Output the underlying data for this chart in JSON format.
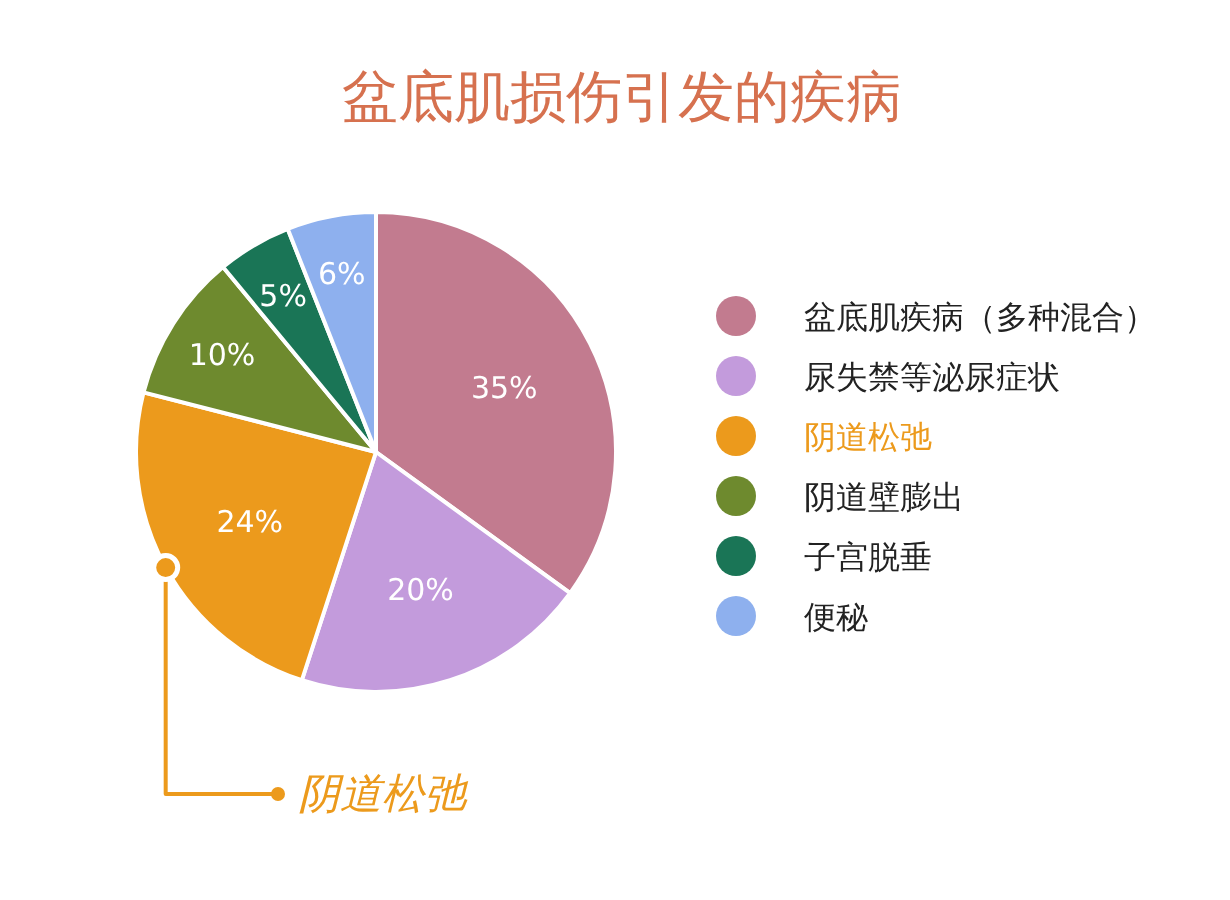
{
  "chart_data": {
    "type": "pie",
    "title": "盆底肌损伤引发的疾病",
    "categories": [
      "盆底肌疾病（多种混合）",
      "尿失禁等泌尿症状",
      "阴道松弛",
      "阴道壁膨出",
      "子宫脱垂",
      "便秘"
    ],
    "values": [
      35,
      20,
      24,
      10,
      5,
      6
    ],
    "value_labels": [
      "35%",
      "20%",
      "24%",
      "10%",
      "5%",
      "6%"
    ],
    "colors": [
      "#c27b8f",
      "#c39bdc",
      "#ec9a1c",
      "#6e8a2e",
      "#1a7556",
      "#8eb0ee"
    ],
    "legend": "right",
    "annotations": [
      {
        "text": "阴道松弛",
        "x": "阴道松弛"
      }
    ]
  }
}
